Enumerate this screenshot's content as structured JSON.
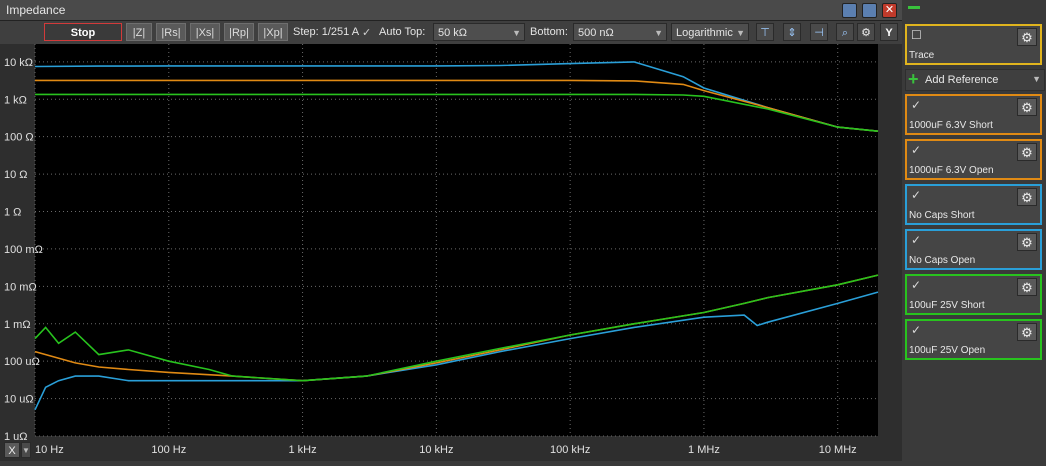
{
  "window": {
    "title": "Impedance"
  },
  "toolbar": {
    "stop_label": "Stop",
    "view_buttons": [
      "|Z|",
      "|Rs|",
      "|Xs|",
      "|Rp|",
      "|Xp|"
    ],
    "step_label": "Step: 1/251 A",
    "step_check": "✓",
    "auto_top_label": "Auto Top:",
    "top_value": "50 kΩ",
    "bottom_label": "Bottom:",
    "bottom_value": "500 nΩ",
    "scale_value": "Logarithmic",
    "y_button": "Y",
    "x_button": "X"
  },
  "sidebar": {
    "trace_label": "Trace",
    "add_reference_label": "Add Reference",
    "cards": [
      {
        "name": "1000uF 6.3V Short",
        "color": "#e08a14"
      },
      {
        "name": "1000uF 6.3V Open",
        "color": "#e08a14"
      },
      {
        "name": "No Caps Short",
        "color": "#2a9fd8"
      },
      {
        "name": "No Caps Open",
        "color": "#2a9fd8"
      },
      {
        "name": "100uF 25V Short",
        "color": "#28c31e"
      },
      {
        "name": "100uF 25V Open",
        "color": "#28c31e"
      }
    ]
  },
  "chart_data": {
    "type": "line",
    "title": "",
    "xlabel": "",
    "ylabel": "",
    "x_scale": "log",
    "y_scale": "log",
    "xlim": [
      10,
      20000000
    ],
    "ylim": [
      1e-06,
      30000
    ],
    "x_ticks": [
      {
        "v": 10,
        "label": "10 Hz"
      },
      {
        "v": 100,
        "label": "100 Hz"
      },
      {
        "v": 1000,
        "label": "1 kHz"
      },
      {
        "v": 10000,
        "label": "10 kHz"
      },
      {
        "v": 100000,
        "label": "100 kHz"
      },
      {
        "v": 1000000,
        "label": "1 MHz"
      },
      {
        "v": 10000000,
        "label": "10 MHz"
      }
    ],
    "y_ticks": [
      {
        "v": 10000,
        "label": "10 kΩ"
      },
      {
        "v": 1000,
        "label": "1 kΩ"
      },
      {
        "v": 100,
        "label": "100 Ω"
      },
      {
        "v": 10,
        "label": "10 Ω"
      },
      {
        "v": 1,
        "label": "1 Ω"
      },
      {
        "v": 0.1,
        "label": "100 mΩ"
      },
      {
        "v": 0.01,
        "label": "10 mΩ"
      },
      {
        "v": 0.001,
        "label": "1 mΩ"
      },
      {
        "v": 0.0001,
        "label": "100 uΩ"
      },
      {
        "v": 1e-05,
        "label": "10 uΩ"
      },
      {
        "v": 1e-06,
        "label": "1 uΩ"
      }
    ],
    "grid": true,
    "series": [
      {
        "color": "#2a9fd8",
        "x": [
          10,
          30,
          100,
          300,
          1000,
          3000,
          10000,
          30000,
          100000,
          300000,
          700000,
          1000000,
          3000000,
          10000000,
          20000000
        ],
        "y": [
          7500,
          7700,
          7800,
          7800,
          7800,
          7800,
          7800,
          8000,
          9000,
          10000,
          4000,
          2000,
          600,
          180,
          140
        ]
      },
      {
        "color": "#e08a14",
        "x": [
          10,
          30,
          100,
          300,
          1000,
          3000,
          10000,
          30000,
          100000,
          300000,
          700000,
          1000000,
          3000000,
          10000000,
          20000000
        ],
        "y": [
          3200,
          3200,
          3200,
          3200,
          3200,
          3200,
          3200,
          3200,
          3200,
          3100,
          2500,
          1700,
          600,
          180,
          140
        ]
      },
      {
        "color": "#28c31e",
        "x": [
          10,
          30,
          100,
          300,
          1000,
          3000,
          10000,
          30000,
          100000,
          300000,
          700000,
          1000000,
          3000000,
          10000000,
          20000000
        ],
        "y": [
          1350,
          1350,
          1350,
          1350,
          1350,
          1350,
          1350,
          1350,
          1350,
          1350,
          1300,
          1200,
          550,
          180,
          140
        ]
      },
      {
        "color": "#2a9fd8",
        "x": [
          10,
          12,
          15,
          20,
          30,
          50,
          100,
          300,
          1000,
          3000,
          10000,
          30000,
          100000,
          300000,
          1000000,
          2000000,
          2500000,
          3000000,
          10000000,
          20000000
        ],
        "y": [
          5e-06,
          2e-05,
          3e-05,
          4e-05,
          4e-05,
          3e-05,
          3e-05,
          3e-05,
          3e-05,
          4e-05,
          8e-05,
          0.00018,
          0.0004,
          0.0008,
          0.0015,
          0.0017,
          0.0009,
          0.0011,
          0.0035,
          0.007
        ]
      },
      {
        "color": "#e08a14",
        "x": [
          10,
          20,
          30,
          50,
          100,
          300,
          1000,
          3000,
          10000,
          30000,
          100000,
          300000,
          1000000,
          2000000,
          3000000,
          10000000,
          20000000
        ],
        "y": [
          0.00018,
          9e-05,
          7e-05,
          6e-05,
          5e-05,
          4e-05,
          3e-05,
          4e-05,
          9e-05,
          0.0002,
          0.0005,
          0.001,
          0.002,
          0.0035,
          0.005,
          0.011,
          0.02
        ]
      },
      {
        "color": "#28c31e",
        "x": [
          10,
          12,
          15,
          20,
          30,
          50,
          100,
          200,
          300,
          1000,
          3000,
          10000,
          30000,
          100000,
          300000,
          1000000,
          2000000,
          3000000,
          10000000,
          20000000
        ],
        "y": [
          0.0004,
          0.0008,
          0.0003,
          0.0006,
          0.00015,
          0.0002,
          0.0001,
          6e-05,
          4e-05,
          3e-05,
          4e-05,
          0.0001,
          0.00022,
          0.0005,
          0.001,
          0.002,
          0.0035,
          0.005,
          0.011,
          0.02
        ]
      }
    ]
  }
}
